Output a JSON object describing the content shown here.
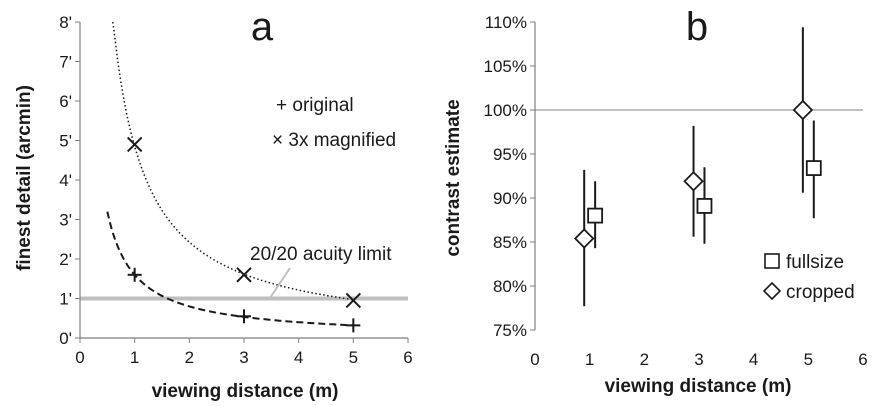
{
  "chart_data": [
    {
      "panel": "a",
      "type": "line",
      "xlabel": "viewing distance (m)",
      "ylabel": "finest detail (arcmin)",
      "xlim": [
        0,
        6
      ],
      "ylim": [
        0,
        8
      ],
      "xticks": [
        "0",
        "1",
        "2",
        "3",
        "4",
        "5",
        "6"
      ],
      "yticks": [
        "0'",
        "1'",
        "2'",
        "3'",
        "4'",
        "5'",
        "6'",
        "7'",
        "8'"
      ],
      "reference_line": {
        "y": 1,
        "label": "20/20 acuity limit",
        "color": "#bfbfbf"
      },
      "series": [
        {
          "name": "original",
          "marker": "+",
          "line": "dashed",
          "x": [
            1,
            3,
            5
          ],
          "y": [
            1.6,
            0.55,
            0.32
          ],
          "curve_k": 1.6,
          "curve_x_range": [
            0.5,
            5
          ]
        },
        {
          "name": "3x magnified",
          "marker": "x",
          "line": "dotted",
          "x": [
            1,
            3,
            5
          ],
          "y": [
            4.9,
            1.6,
            0.95
          ],
          "curve_k": 4.85,
          "curve_x_range": [
            0.6,
            5
          ]
        }
      ],
      "legend_position": "top-right",
      "grid": false
    },
    {
      "panel": "b",
      "type": "scatter",
      "xlabel": "viewing distance (m)",
      "ylabel": "contrast estimate",
      "xlim": [
        0,
        6
      ],
      "ylim": [
        75,
        110
      ],
      "xticks": [
        "0",
        "1",
        "2",
        "3",
        "4",
        "5",
        "6"
      ],
      "yticks": [
        "75%",
        "80%",
        "85%",
        "90%",
        "95%",
        "100%",
        "105%",
        "110%"
      ],
      "reference_line": {
        "y": 100,
        "color": "#9a9a9a"
      },
      "series": [
        {
          "name": "fullsize",
          "marker": "square",
          "x": [
            1.1,
            3.1,
            5.1
          ],
          "y": [
            88.0,
            89.1,
            93.4
          ],
          "err_low": [
            84.3,
            84.8,
            87.7
          ],
          "err_high": [
            91.9,
            93.5,
            98.8
          ]
        },
        {
          "name": "cropped",
          "marker": "diamond",
          "x": [
            0.9,
            2.9,
            4.9
          ],
          "y": [
            85.4,
            91.9,
            100.0
          ],
          "err_low": [
            77.7,
            85.6,
            90.6
          ],
          "err_high": [
            93.2,
            98.2,
            109.4
          ]
        }
      ],
      "legend_position": "bottom-right",
      "grid": false
    }
  ]
}
